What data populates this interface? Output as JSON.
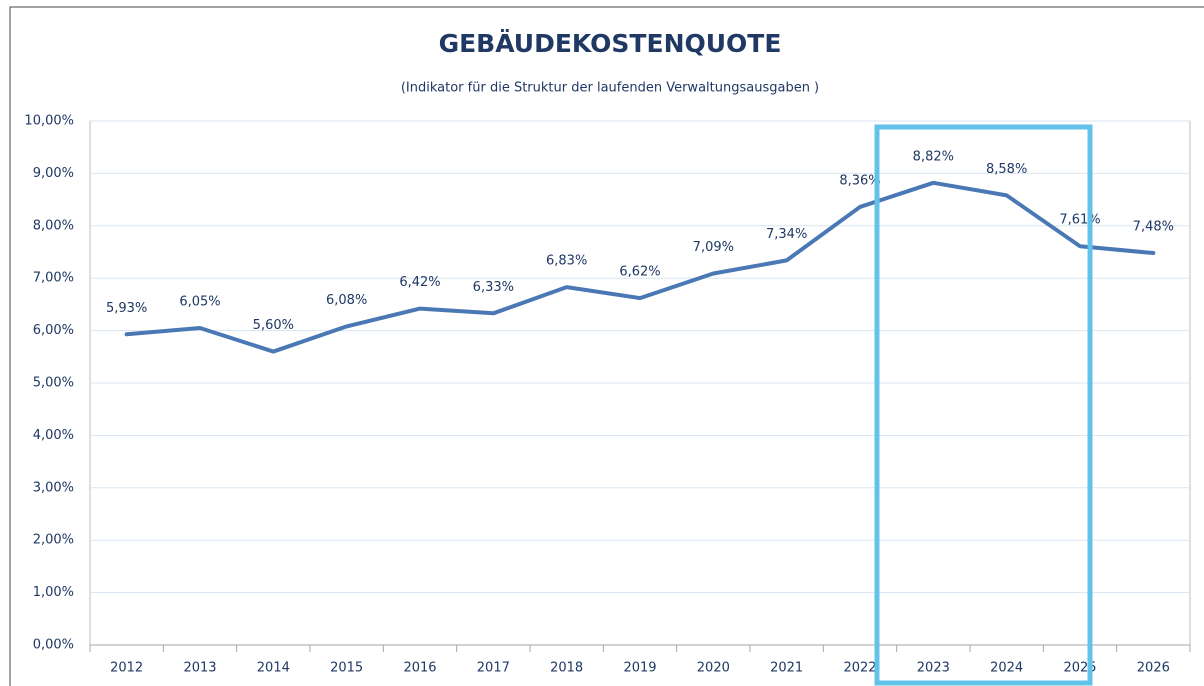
{
  "chart_data": {
    "type": "line",
    "title": "GEBÄUDEKOSTENQUOTE",
    "subtitle": "(Indikator für die Struktur der laufenden Verwaltungsausgaben )",
    "categories": [
      "2012",
      "2013",
      "2014",
      "2015",
      "2016",
      "2017",
      "2018",
      "2019",
      "2020",
      "2021",
      "2022",
      "2023",
      "2024",
      "2025",
      "2026"
    ],
    "series": [
      {
        "color": "#4a78b4",
        "values": [
          5.93,
          6.05,
          5.6,
          6.08,
          6.42,
          6.33,
          6.83,
          6.62,
          7.09,
          7.34,
          8.36,
          8.82,
          8.58,
          7.61,
          7.48
        ],
        "value_labels": [
          "5,93%",
          "6,05%",
          "5,60%",
          "6,08%",
          "6,42%",
          "6,33%",
          "6,83%",
          "6,62%",
          "7,09%",
          "7,34%",
          "8,36%",
          "8,82%",
          "8,58%",
          "7,61%",
          "7,48%"
        ]
      }
    ],
    "ylim": [
      0,
      10
    ],
    "yticks": [
      {
        "value": 0,
        "label": "0,00%"
      },
      {
        "value": 1,
        "label": "1,00%"
      },
      {
        "value": 2,
        "label": "2,00%"
      },
      {
        "value": 3,
        "label": "3,00%"
      },
      {
        "value": 4,
        "label": "4,00%"
      },
      {
        "value": 5,
        "label": "5,00%"
      },
      {
        "value": 6,
        "label": "6,00%"
      },
      {
        "value": 7,
        "label": "7,00%"
      },
      {
        "value": 8,
        "label": "8,00%"
      },
      {
        "value": 9,
        "label": "9,00%"
      },
      {
        "value": 10,
        "label": "10,00%"
      }
    ],
    "grid": true
  }
}
